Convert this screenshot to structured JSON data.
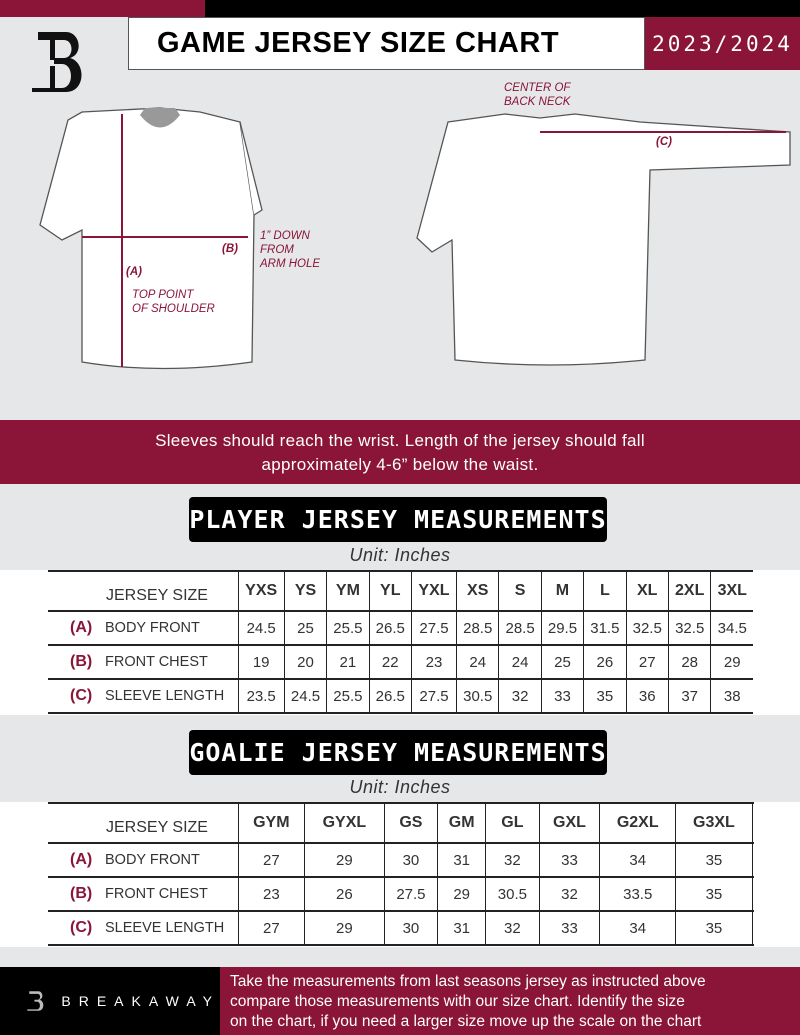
{
  "header": {
    "title": "GAME JERSEY SIZE CHART",
    "season": "2023/2024",
    "logo": "B"
  },
  "diagram": {
    "label_a": "(A)",
    "label_b": "(B)",
    "label_c": "(C)",
    "note_shoulder": [
      "TOP POINT",
      "OF SHOULDER"
    ],
    "note_armhole": [
      "1” DOWN",
      "FROM",
      "ARM HOLE"
    ],
    "note_neck": [
      "CENTER OF",
      "BACK NECK"
    ]
  },
  "instructions": [
    "Sleeves should reach the wrist. Length of the jersey should fall",
    "approximately 4-6” below the waist."
  ],
  "player": {
    "title": "PLAYER JERSEY MEASUREMENTS",
    "unit": "Unit: Inches",
    "size_label": "JERSEY SIZE",
    "sizes": [
      "YXS",
      "YS",
      "YM",
      "YL",
      "YXL",
      "XS",
      "S",
      "M",
      "L",
      "XL",
      "2XL",
      "3XL"
    ],
    "rows": [
      {
        "letter": "(A)",
        "name": "BODY FRONT",
        "values": [
          "24.5",
          "25",
          "25.5",
          "26.5",
          "27.5",
          "28.5",
          "28.5",
          "29.5",
          "31.5",
          "32.5",
          "32.5",
          "34.5"
        ]
      },
      {
        "letter": "(B)",
        "name": "FRONT CHEST",
        "values": [
          "19",
          "20",
          "21",
          "22",
          "23",
          "24",
          "24",
          "25",
          "26",
          "27",
          "28",
          "29"
        ]
      },
      {
        "letter": "(C)",
        "name": "SLEEVE LENGTH",
        "values": [
          "23.5",
          "24.5",
          "25.5",
          "26.5",
          "27.5",
          "30.5",
          "32",
          "33",
          "35",
          "36",
          "37",
          "38"
        ]
      }
    ]
  },
  "goalie": {
    "title": "GOALIE JERSEY MEASUREMENTS",
    "unit": "Unit: Inches",
    "size_label": "JERSEY SIZE",
    "sizes": [
      "GYM",
      "GYXL",
      "GS",
      "GM",
      "GL",
      "GXL",
      "G2XL",
      "G3XL",
      ""
    ],
    "rows": [
      {
        "letter": "(A)",
        "name": "BODY FRONT",
        "values": [
          "27",
          "29",
          "30",
          "31",
          "32",
          "33",
          "34",
          "35",
          ""
        ]
      },
      {
        "letter": "(B)",
        "name": "FRONT CHEST",
        "values": [
          "23",
          "26",
          "27.5",
          "29",
          "30.5",
          "32",
          "33.5",
          "35",
          ""
        ]
      },
      {
        "letter": "(C)",
        "name": "SLEEVE LENGTH",
        "values": [
          "27",
          "29",
          "30",
          "31",
          "32",
          "33",
          "34",
          "35",
          ""
        ]
      }
    ]
  },
  "footer": {
    "brand": "BREAKAWAY",
    "text": [
      "Take the measurements from last seasons jersey as instructed above",
      "compare those measurements  with our size chart. Identify the size",
      "on the chart, if you need a larger size move up the scale on the chart"
    ]
  },
  "colors": {
    "accent": "#8a1538",
    "dark": "#000000",
    "background": "#e6e7e8"
  }
}
